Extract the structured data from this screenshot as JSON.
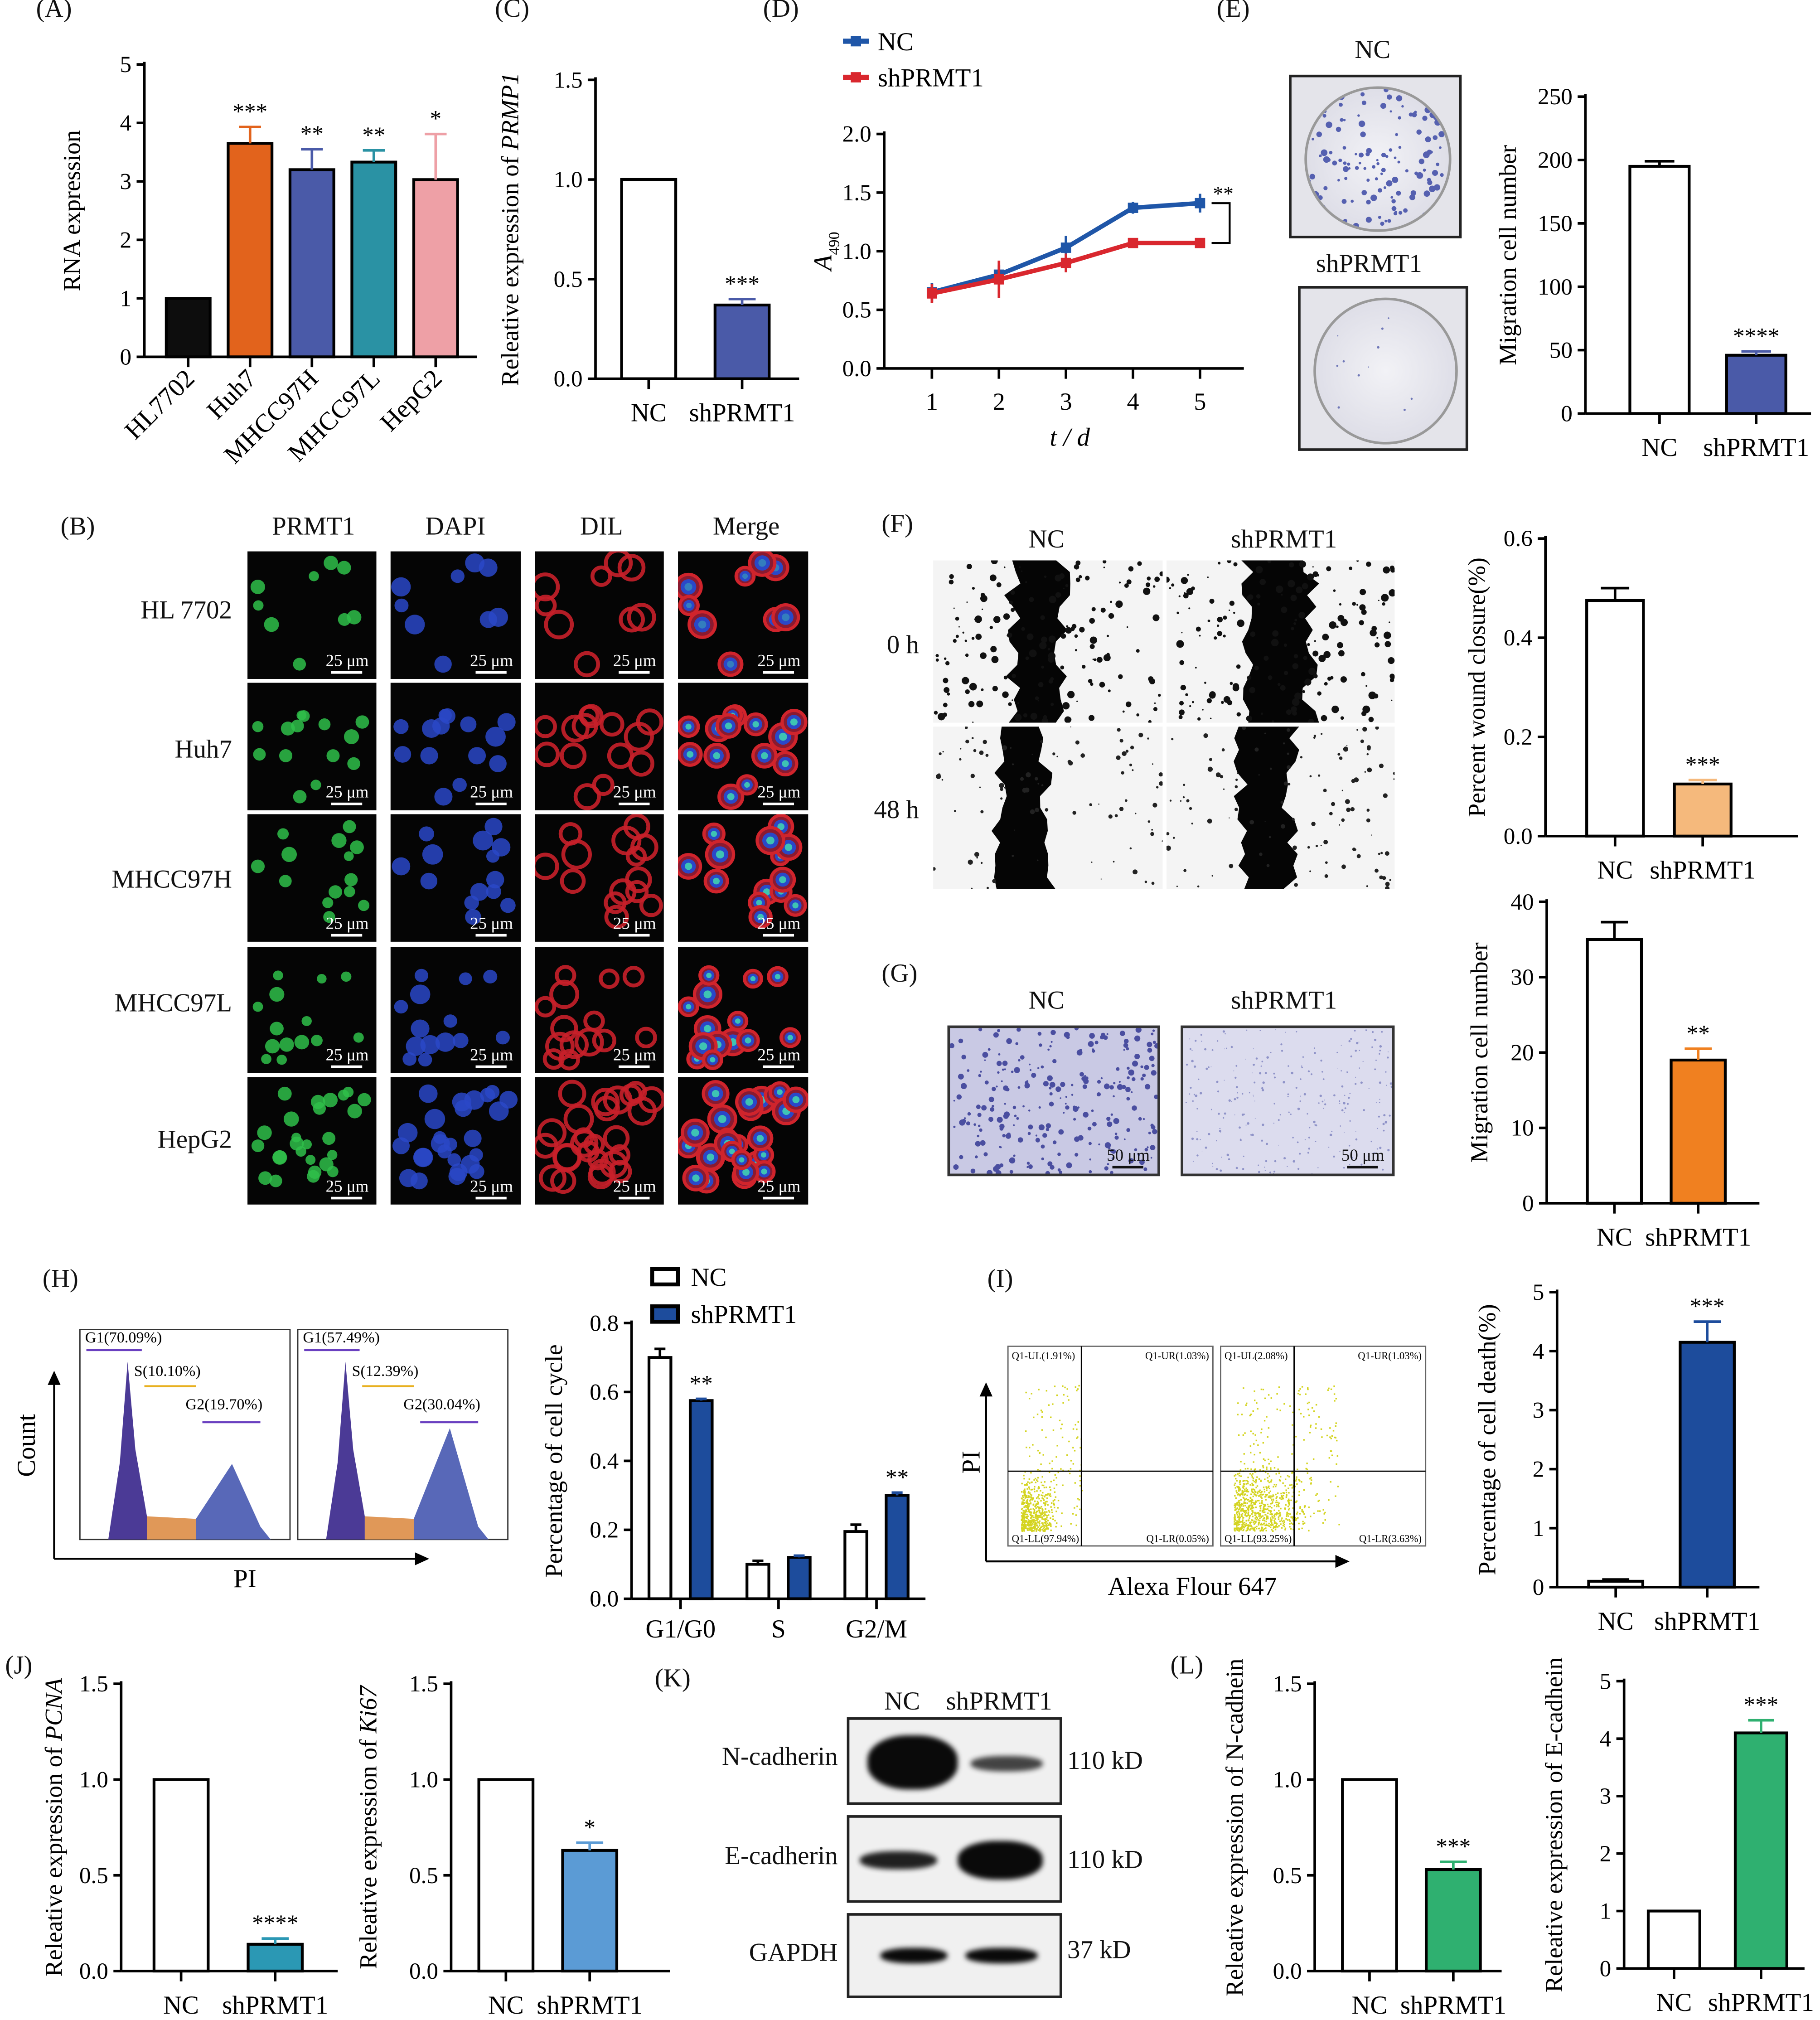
{
  "panel_labels": {
    "A": "(A)",
    "B": "(B)",
    "C": "(C)",
    "D": "(D)",
    "E": "(E)",
    "F": "(F)",
    "G": "(G)",
    "H": "(H)",
    "I": "(I)",
    "J": "(J)",
    "K": "(K)",
    "L": "(L)"
  },
  "panel_B": {
    "columns": [
      "PRMT1",
      "DAPI",
      "DIL",
      "Merge"
    ],
    "rows": [
      "HL 7702",
      "Huh7",
      "MHCC97H",
      "MHCC97L",
      "HepG2"
    ],
    "scale_bar": "25 μm"
  },
  "panel_E_images": {
    "top": "NC",
    "bottom": "shPRMT1"
  },
  "panel_F_images": {
    "columns": [
      "NC",
      "shPRMT1"
    ],
    "rows": [
      "0 h",
      "48 h"
    ]
  },
  "panel_G_images": {
    "columns": [
      "NC",
      "shPRMT1"
    ],
    "scale_bar": "50 μm"
  },
  "panel_H_hist": {
    "ylabel": "Count",
    "xlabel": "PI",
    "left": {
      "g1": "G1(70.09%)",
      "s": "S(10.10%)",
      "g2": "G2(19.70%)"
    },
    "right": {
      "g1": "G1(57.49%)",
      "s": "S(12.39%)",
      "g2": "G2(30.04%)"
    }
  },
  "panel_I_scatter": {
    "ylabel": "PI",
    "xlabel": "Alexa Flour 647",
    "left": {
      "ul": "Q1-UL(1.91%)",
      "ur": "Q1-UR(1.03%)",
      "ll": "Q1-LL(97.94%)",
      "lr": "Q1-LR(0.05%)"
    },
    "right": {
      "ul": "Q1-UL(2.08%)",
      "ur": "Q1-UR(1.03%)",
      "ll": "Q1-LL(93.25%)",
      "lr": "Q1-LR(3.63%)"
    }
  },
  "panel_K_blot": {
    "columns": [
      "NC",
      "shPRMT1"
    ],
    "rows": [
      {
        "name": "N-cadherin",
        "size": "110 kD"
      },
      {
        "name": "E-cadherin",
        "size": "110 kD"
      },
      {
        "name": "GAPDH",
        "size": "37 kD"
      }
    ]
  },
  "colors": {
    "nc": "#ffffff",
    "blue": "#4a5aa8",
    "orange": "#e2631c",
    "teal": "#2a92a4",
    "pink": "#eea0a6",
    "navy": "#1d4c9c",
    "peach": "#f5b97c",
    "orange2": "#f08020",
    "cyan": "#2b98b4",
    "lightblue": "#5b9bd5",
    "green": "#2fb070",
    "red": "#d9272e",
    "lineblue": "#1f56a8"
  },
  "chart_data": [
    {
      "id": "A",
      "type": "bar",
      "title": "",
      "ylabel": "RNA expression",
      "ylabel_italic": "",
      "ylim": [
        0,
        5
      ],
      "yticks": [
        0,
        1,
        2,
        3,
        4,
        5
      ],
      "decimals": 0,
      "categories": [
        "HL7702",
        "Huh7",
        "MHCC97H",
        "MHCC97L",
        "HepG2"
      ],
      "values": [
        1.0,
        3.65,
        3.2,
        3.33,
        3.03
      ],
      "errors": [
        0,
        0.28,
        0.35,
        0.2,
        0.78
      ],
      "significance": [
        "",
        "***",
        "**",
        "**",
        "*"
      ],
      "colors": [
        "#0d0d0d",
        "#e2631c",
        "#4a5aa8",
        "#2a92a4",
        "#eea0a6"
      ]
    },
    {
      "id": "C",
      "type": "bar",
      "ylabel": "Releative expression of ",
      "ylabel_italic": "PRMP1",
      "ylim": [
        0,
        1.5
      ],
      "yticks": [
        0,
        0.5,
        1.0,
        1.5
      ],
      "decimals": 1,
      "categories": [
        "NC",
        "shPRMT1"
      ],
      "values": [
        1.0,
        0.37
      ],
      "errors": [
        0,
        0.03
      ],
      "significance": [
        "",
        "***"
      ],
      "colors": [
        "#ffffff",
        "#4a5aa8"
      ]
    },
    {
      "id": "D",
      "type": "line",
      "ylabel": "A",
      "ylabel_sub": "490",
      "xlabel": "t / d",
      "ylim": [
        0,
        2.0
      ],
      "yticks": [
        0,
        0.5,
        1.0,
        1.5,
        2.0
      ],
      "decimals": 1,
      "x": [
        1,
        2,
        3,
        4,
        5
      ],
      "series": [
        {
          "name": "NC",
          "values": [
            0.65,
            0.8,
            1.03,
            1.37,
            1.41
          ],
          "errors": [
            0.08,
            0.08,
            0.1,
            0.05,
            0.08
          ],
          "color": "#1f56a8"
        },
        {
          "name": "shPRMT1",
          "values": [
            0.64,
            0.76,
            0.9,
            1.07,
            1.07
          ],
          "errors": [
            0.08,
            0.16,
            0.08,
            0.02,
            0.02
          ],
          "color": "#d9272e"
        }
      ],
      "significance": "**",
      "legend": "top-left"
    },
    {
      "id": "E",
      "type": "bar",
      "ylabel": "Migration cell number",
      "ylabel_italic": "",
      "ylim": [
        0,
        250
      ],
      "yticks": [
        0,
        50,
        100,
        150,
        200,
        250
      ],
      "decimals": 0,
      "categories": [
        "NC",
        "shPRMT1"
      ],
      "values": [
        195,
        46
      ],
      "errors": [
        4,
        3
      ],
      "significance": [
        "",
        "****"
      ],
      "colors": [
        "#ffffff",
        "#4a5aa8"
      ]
    },
    {
      "id": "F",
      "type": "bar",
      "ylabel": "Percent wound closure(%)",
      "ylabel_italic": "",
      "ylim": [
        0,
        0.6
      ],
      "yticks": [
        0,
        0.2,
        0.4,
        0.6
      ],
      "decimals": 1,
      "categories": [
        "NC",
        "shPRMT1"
      ],
      "values": [
        0.475,
        0.105
      ],
      "errors": [
        0.025,
        0.008
      ],
      "significance": [
        "",
        "***"
      ],
      "colors": [
        "#ffffff",
        "#f5b97c"
      ]
    },
    {
      "id": "G",
      "type": "bar",
      "ylabel": "Migration cell number",
      "ylabel_italic": "",
      "ylim": [
        0,
        40
      ],
      "yticks": [
        0,
        10,
        20,
        30,
        40
      ],
      "decimals": 0,
      "categories": [
        "NC",
        "shPRMT1"
      ],
      "values": [
        35,
        19
      ],
      "errors": [
        2.3,
        1.5
      ],
      "significance": [
        "",
        "**"
      ],
      "colors": [
        "#ffffff",
        "#f08020"
      ]
    },
    {
      "id": "H",
      "type": "bar",
      "ylabel": "Percentage of cell cycle",
      "ylabel_italic": "",
      "ylim": [
        0,
        0.8
      ],
      "yticks": [
        0,
        0.2,
        0.4,
        0.6,
        0.8
      ],
      "decimals": 1,
      "categories": [
        "G1/G0",
        "S",
        "G2/M"
      ],
      "series": [
        {
          "name": "NC",
          "values": [
            0.7,
            0.1,
            0.195
          ],
          "errors": [
            0.025,
            0.01,
            0.02
          ],
          "color": "#ffffff"
        },
        {
          "name": "shPRMT1",
          "values": [
            0.575,
            0.12,
            0.3
          ],
          "errors": [
            0.005,
            0.005,
            0.008
          ],
          "color": "#1d4c9c"
        }
      ],
      "significance": [
        [
          "",
          "**"
        ],
        [
          "",
          ""
        ],
        [
          "",
          "**"
        ]
      ],
      "legend": "top"
    },
    {
      "id": "I",
      "type": "bar",
      "ylabel": "Percentage of cell death(%)",
      "ylabel_italic": "",
      "ylim": [
        0,
        5
      ],
      "yticks": [
        0,
        1,
        2,
        3,
        4,
        5
      ],
      "decimals": 0,
      "categories": [
        "NC",
        "shPRMT1"
      ],
      "values": [
        0.1,
        4.15
      ],
      "errors": [
        0.03,
        0.35
      ],
      "significance": [
        "",
        "***"
      ],
      "colors": [
        "#ffffff",
        "#1d4c9c"
      ]
    },
    {
      "id": "J1",
      "type": "bar",
      "ylabel": "Releative expression of ",
      "ylabel_italic": "PCNA",
      "ylim": [
        0,
        1.5
      ],
      "yticks": [
        0,
        0.5,
        1.0,
        1.5
      ],
      "decimals": 1,
      "categories": [
        "NC",
        "shPRMT1"
      ],
      "values": [
        1.0,
        0.14
      ],
      "errors": [
        0,
        0.03
      ],
      "significance": [
        "",
        "****"
      ],
      "colors": [
        "#ffffff",
        "#2b98b4"
      ]
    },
    {
      "id": "J2",
      "type": "bar",
      "ylabel": "Releative expression of ",
      "ylabel_italic": "Ki67",
      "ylim": [
        0,
        1.5
      ],
      "yticks": [
        0,
        0.5,
        1.0,
        1.5
      ],
      "decimals": 1,
      "categories": [
        "NC",
        "shPRMT1"
      ],
      "values": [
        1.0,
        0.63
      ],
      "errors": [
        0,
        0.04
      ],
      "significance": [
        "",
        "*"
      ],
      "colors": [
        "#ffffff",
        "#5b9bd5"
      ]
    },
    {
      "id": "L1",
      "type": "bar",
      "ylabel": "Releative expression of N-cadhein",
      "ylabel_italic": "",
      "ylim": [
        0,
        1.5
      ],
      "yticks": [
        0,
        0.5,
        1.0,
        1.5
      ],
      "decimals": 1,
      "categories": [
        "NC",
        "shPRMT1"
      ],
      "values": [
        1.0,
        0.53
      ],
      "errors": [
        0,
        0.04
      ],
      "significance": [
        "",
        "***"
      ],
      "colors": [
        "#ffffff",
        "#2fb070"
      ]
    },
    {
      "id": "L2",
      "type": "bar",
      "ylabel": "Releative expression of E-cadhein",
      "ylabel_italic": "",
      "ylim": [
        0,
        5
      ],
      "yticks": [
        0,
        1,
        2,
        3,
        4,
        5
      ],
      "decimals": 0,
      "categories": [
        "NC",
        "shPRMT1"
      ],
      "values": [
        1.0,
        4.1
      ],
      "errors": [
        0,
        0.22
      ],
      "significance": [
        "",
        "***"
      ],
      "colors": [
        "#ffffff",
        "#2fb070"
      ]
    }
  ]
}
